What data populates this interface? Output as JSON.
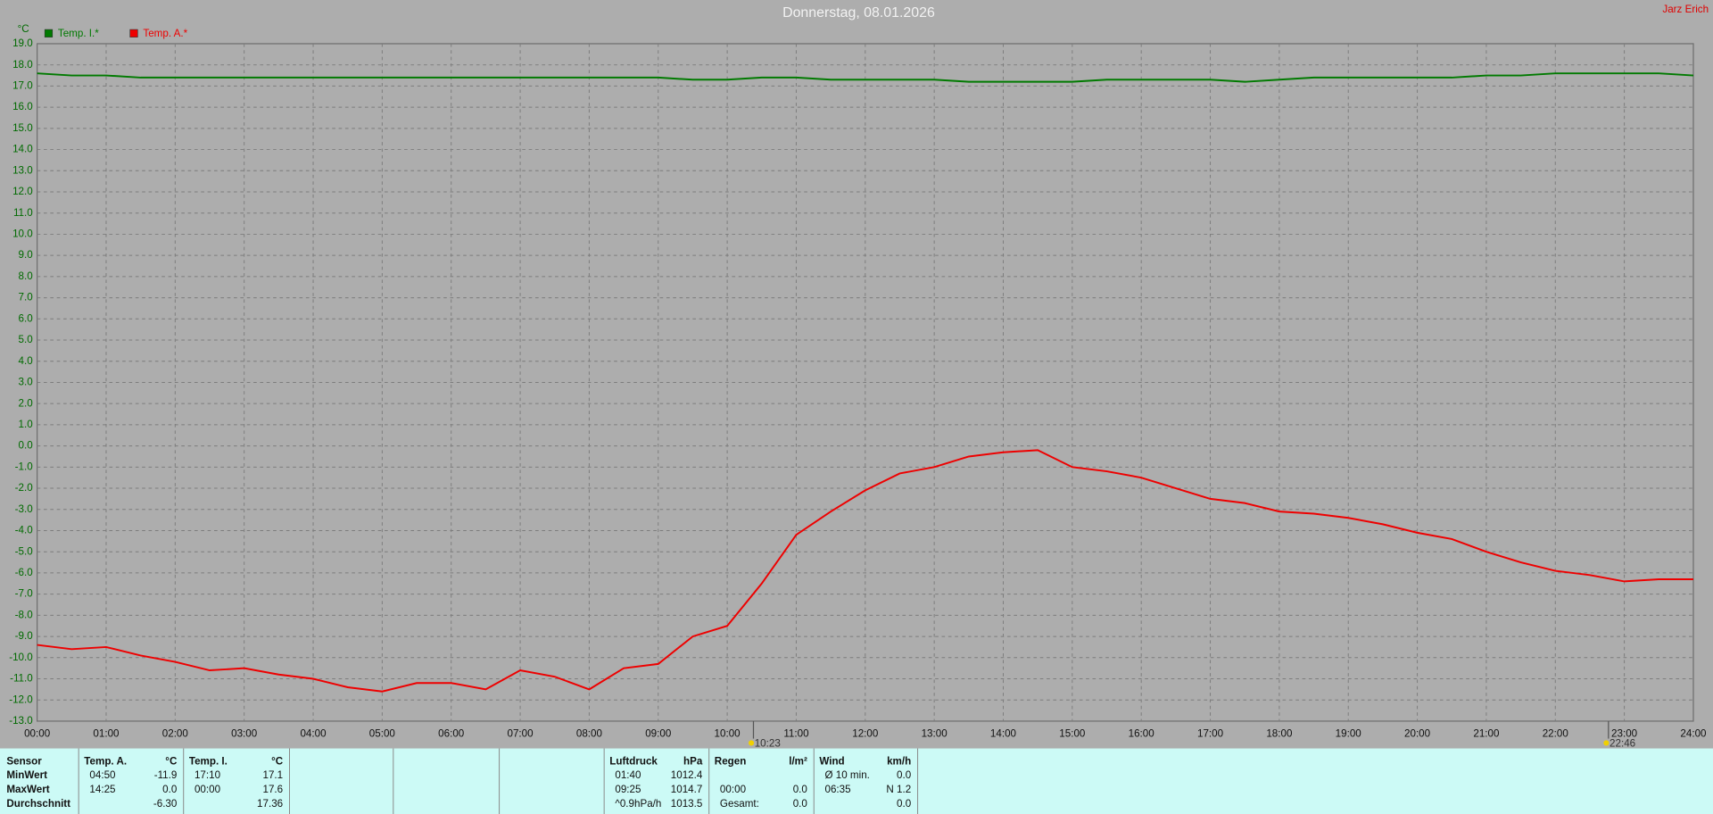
{
  "author": "Jarz Erich",
  "chart_data": {
    "type": "line",
    "title": "Donnerstag, 08.01.2026",
    "y_unit": "°C",
    "x": [
      0,
      0.5,
      1,
      1.5,
      2,
      2.5,
      3,
      3.5,
      4,
      4.5,
      5,
      5.5,
      6,
      6.5,
      7,
      7.5,
      8,
      8.5,
      9,
      9.5,
      10,
      10.5,
      11,
      11.5,
      12,
      12.5,
      13,
      13.5,
      14,
      14.5,
      15,
      15.5,
      16,
      16.5,
      17,
      17.5,
      18,
      18.5,
      19,
      19.5,
      20,
      20.5,
      21,
      21.5,
      22,
      22.5,
      23,
      23.5,
      24
    ],
    "series": [
      {
        "name": "Temp. I.*",
        "color": "#007a00",
        "values": [
          17.6,
          17.5,
          17.5,
          17.4,
          17.4,
          17.4,
          17.4,
          17.4,
          17.4,
          17.4,
          17.4,
          17.4,
          17.4,
          17.4,
          17.4,
          17.4,
          17.4,
          17.4,
          17.4,
          17.3,
          17.3,
          17.4,
          17.4,
          17.3,
          17.3,
          17.3,
          17.3,
          17.2,
          17.2,
          17.2,
          17.2,
          17.3,
          17.3,
          17.3,
          17.3,
          17.2,
          17.3,
          17.4,
          17.4,
          17.4,
          17.4,
          17.4,
          17.5,
          17.5,
          17.6,
          17.6,
          17.6,
          17.6,
          17.5
        ]
      },
      {
        "name": "Temp. A.*",
        "color": "#ee0000",
        "values": [
          -9.4,
          -9.6,
          -9.5,
          -9.9,
          -10.2,
          -10.6,
          -10.5,
          -10.8,
          -11.0,
          -11.4,
          -11.6,
          -11.2,
          -11.2,
          -11.5,
          -10.6,
          -10.9,
          -11.5,
          -10.5,
          -10.3,
          -9.0,
          -8.5,
          -6.5,
          -4.2,
          -3.1,
          -2.1,
          -1.3,
          -1.0,
          -0.5,
          -0.3,
          -0.2,
          -1.0,
          -1.2,
          -1.5,
          -2.0,
          -2.5,
          -2.7,
          -3.1,
          -3.2,
          -3.4,
          -3.7,
          -4.1,
          -4.4,
          -5.0,
          -5.5,
          -5.9,
          -6.1,
          -6.4,
          -6.3,
          -6.3
        ]
      }
    ],
    "xlim": [
      0,
      24
    ],
    "xticks": [
      {
        "value": 0,
        "label": "00:00"
      },
      {
        "value": 1,
        "label": "01:00"
      },
      {
        "value": 2,
        "label": "02:00"
      },
      {
        "value": 3,
        "label": "03:00"
      },
      {
        "value": 4,
        "label": "04:00"
      },
      {
        "value": 5,
        "label": "05:00"
      },
      {
        "value": 6,
        "label": "06:00"
      },
      {
        "value": 7,
        "label": "07:00"
      },
      {
        "value": 8,
        "label": "08:00"
      },
      {
        "value": 9,
        "label": "09:00"
      },
      {
        "value": 10,
        "label": "10:00"
      },
      {
        "value": 11,
        "label": "11:00"
      },
      {
        "value": 12,
        "label": "12:00"
      },
      {
        "value": 13,
        "label": "13:00"
      },
      {
        "value": 14,
        "label": "14:00"
      },
      {
        "value": 15,
        "label": "15:00"
      },
      {
        "value": 16,
        "label": "16:00"
      },
      {
        "value": 17,
        "label": "17:00"
      },
      {
        "value": 18,
        "label": "18:00"
      },
      {
        "value": 19,
        "label": "19:00"
      },
      {
        "value": 20,
        "label": "20:00"
      },
      {
        "value": 21,
        "label": "21:00"
      },
      {
        "value": 22,
        "label": "22:00"
      },
      {
        "value": 23,
        "label": "23:00"
      },
      {
        "value": 24,
        "label": "24:00"
      }
    ],
    "ylim": [
      -13,
      19
    ],
    "yticks": [
      {
        "value": 19,
        "label": "19.0"
      },
      {
        "value": 18,
        "label": "18.0"
      },
      {
        "value": 17,
        "label": "17.0"
      },
      {
        "value": 16,
        "label": "16.0"
      },
      {
        "value": 15,
        "label": "15.0"
      },
      {
        "value": 14,
        "label": "14.0"
      },
      {
        "value": 13,
        "label": "13.0"
      },
      {
        "value": 12,
        "label": "12.0"
      },
      {
        "value": 11,
        "label": "11.0"
      },
      {
        "value": 10,
        "label": "10.0"
      },
      {
        "value": 9,
        "label": "9.0"
      },
      {
        "value": 8,
        "label": "8.0"
      },
      {
        "value": 7,
        "label": "7.0"
      },
      {
        "value": 6,
        "label": "6.0"
      },
      {
        "value": 5,
        "label": "5.0"
      },
      {
        "value": 4,
        "label": "4.0"
      },
      {
        "value": 3,
        "label": "3.0"
      },
      {
        "value": 2,
        "label": "2.0"
      },
      {
        "value": 1,
        "label": "1.0"
      },
      {
        "value": 0,
        "label": "0.0"
      },
      {
        "value": -1,
        "label": "-1.0"
      },
      {
        "value": -2,
        "label": "-2.0"
      },
      {
        "value": -3,
        "label": "-3.0"
      },
      {
        "value": -4,
        "label": "-4.0"
      },
      {
        "value": -5,
        "label": "-5.0"
      },
      {
        "value": -6,
        "label": "-6.0"
      },
      {
        "value": -7,
        "label": "-7.0"
      },
      {
        "value": -8,
        "label": "-8.0"
      },
      {
        "value": -9,
        "label": "-9.0"
      },
      {
        "value": -10,
        "label": "-10.0"
      },
      {
        "value": -11,
        "label": "-11.0"
      },
      {
        "value": -12,
        "label": "-12.0"
      },
      {
        "value": -13,
        "label": "-13.0"
      }
    ],
    "grid": true,
    "legend": "top-left",
    "annotations": [
      {
        "x": 10.38,
        "label": "10:23"
      },
      {
        "x": 22.77,
        "label": "22:46"
      }
    ]
  },
  "table": {
    "row_labels": [
      "Sensor",
      "MinWert",
      "MaxWert",
      "Durchschnitt"
    ],
    "groups": [
      {
        "name": "Temp. A.",
        "unit": "°C",
        "rows": [
          {
            "left": "04:50",
            "right": "-11.9"
          },
          {
            "left": "14:25",
            "right": "0.0"
          },
          {
            "right": "-6.30"
          }
        ]
      },
      {
        "name": "Temp. I.",
        "unit": "°C",
        "rows": [
          {
            "left": "17:10",
            "right": "17.1"
          },
          {
            "left": "00:00",
            "right": "17.6"
          },
          {
            "right": "17.36"
          }
        ]
      },
      {
        "name": "Luftdruck",
        "unit": "hPa",
        "rows": [
          {
            "left": "01:40",
            "right": "1012.4"
          },
          {
            "left": "09:25",
            "right": "1014.7"
          },
          {
            "left": "^0.9hPa/h",
            "right": "1013.5"
          }
        ]
      },
      {
        "name": "Regen",
        "unit": "l/m²",
        "rows": [
          {},
          {
            "left": "00:00",
            "right": "0.0"
          },
          {
            "left": "Gesamt:",
            "right": "0.0"
          }
        ]
      },
      {
        "name": "Wind",
        "unit": "km/h",
        "rows": [
          {
            "left": "Ø 10 min.",
            "right": "0.0"
          },
          {
            "left": "06:35",
            "right": "N 1.2"
          },
          {
            "right": "0.0"
          }
        ]
      }
    ]
  }
}
